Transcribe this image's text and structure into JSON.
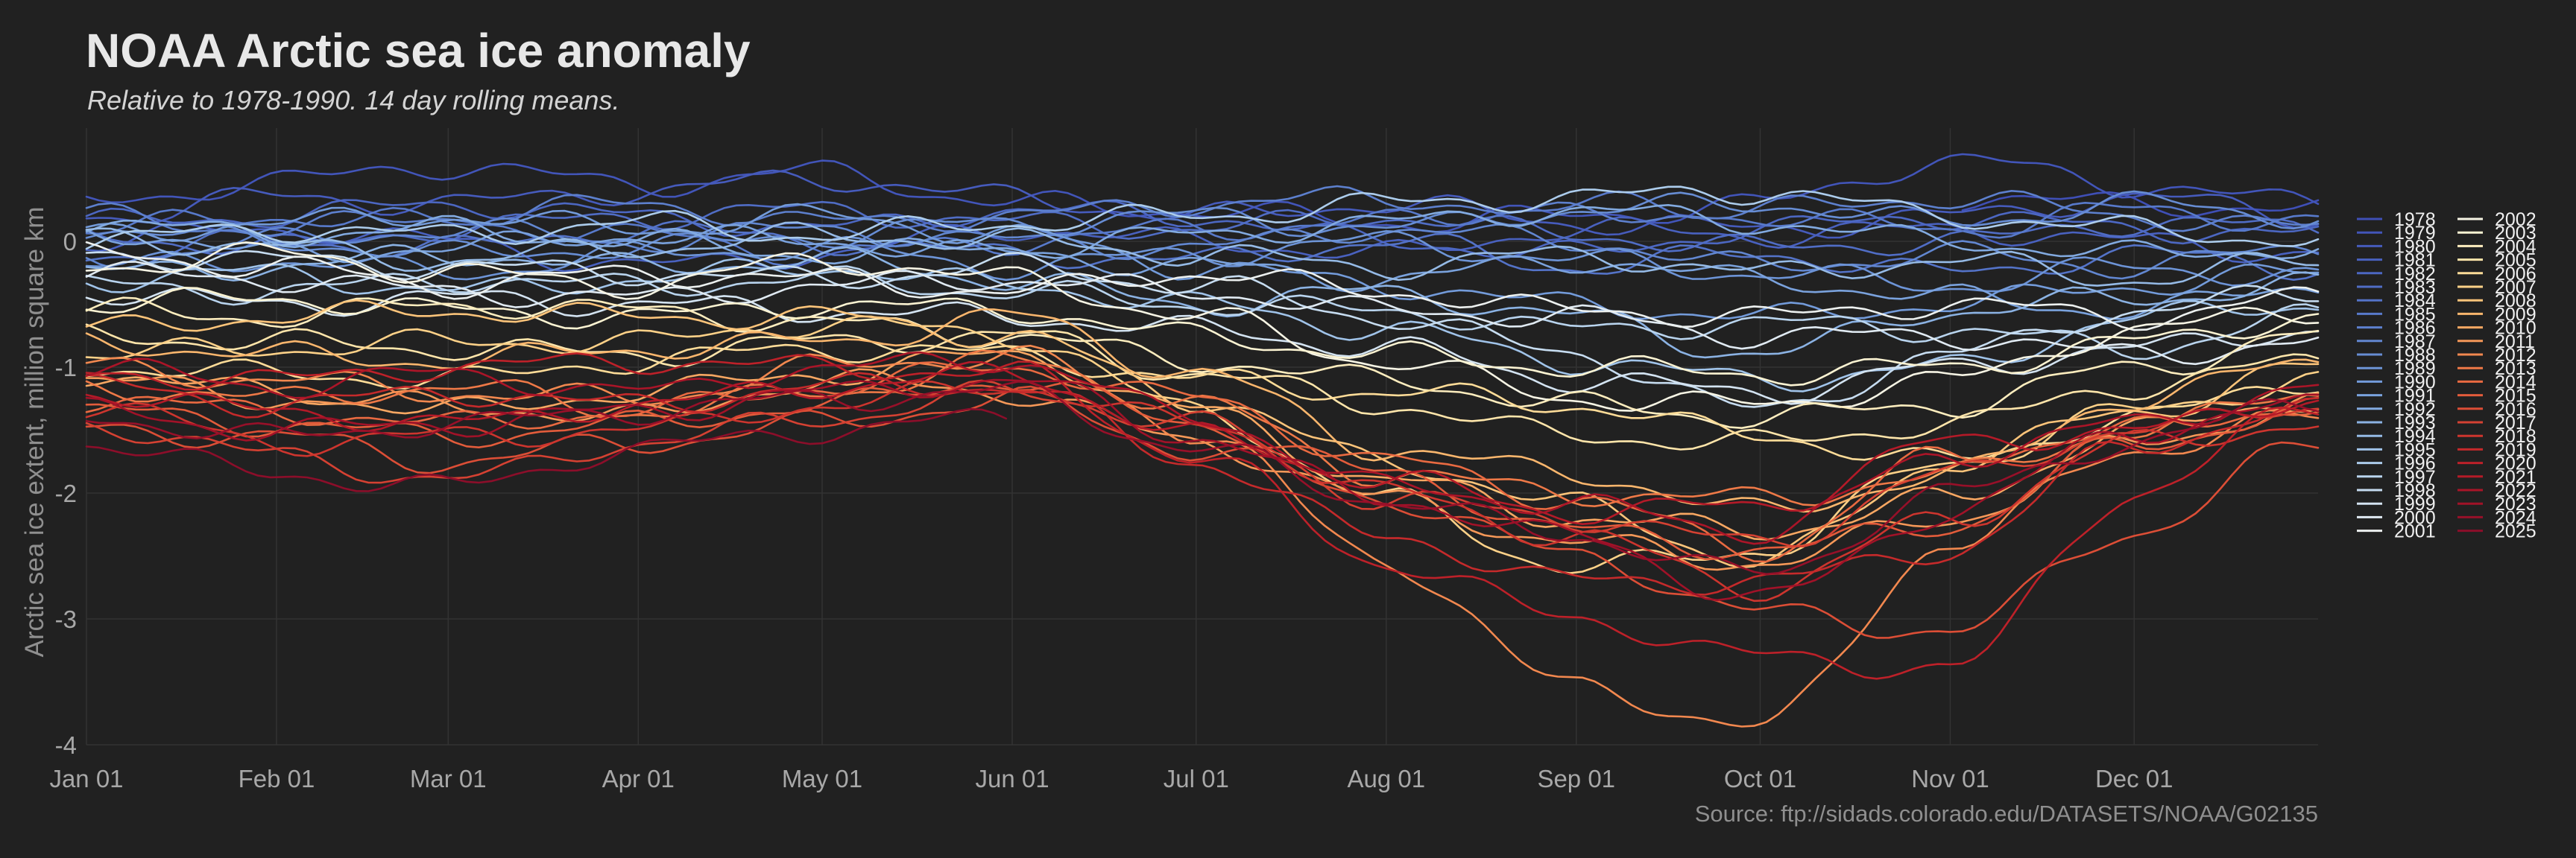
{
  "chart_data": {
    "type": "line",
    "title": "NOAA Arctic sea ice anomaly",
    "subtitle": "Relative to 1978-1990. 14 day rolling means.",
    "xlabel": "",
    "ylabel": "Arctic sea ice extent, million square km",
    "source": "Source: ftp://sidads.colorado.edu/DATASETS/NOAA/G02135",
    "xlim": [
      1,
      365
    ],
    "ylim": [
      -4,
      0.9
    ],
    "grid": true,
    "legend_position": "right",
    "x_ticks": [
      {
        "day": 1,
        "label": "Jan 01"
      },
      {
        "day": 32,
        "label": "Feb 01"
      },
      {
        "day": 60,
        "label": "Mar 01"
      },
      {
        "day": 91,
        "label": "Apr 01"
      },
      {
        "day": 121,
        "label": "May 01"
      },
      {
        "day": 152,
        "label": "Jun 01"
      },
      {
        "day": 182,
        "label": "Jul 01"
      },
      {
        "day": 213,
        "label": "Aug 01"
      },
      {
        "day": 244,
        "label": "Sep 01"
      },
      {
        "day": 274,
        "label": "Oct 01"
      },
      {
        "day": 305,
        "label": "Nov 01"
      },
      {
        "day": 335,
        "label": "Dec 01"
      }
    ],
    "y_ticks": [
      {
        "value": 0,
        "label": "0"
      },
      {
        "value": -1,
        "label": "-1"
      },
      {
        "value": -2,
        "label": "-2"
      },
      {
        "value": -3,
        "label": "-3"
      },
      {
        "value": -4,
        "label": "-4"
      }
    ],
    "x_days": [
      1,
      32,
      60,
      91,
      121,
      152,
      182,
      213,
      244,
      274,
      305,
      335,
      365
    ],
    "series": [
      {
        "name": "1978",
        "color": "#3f4fb6",
        "values": [
          null,
          null,
          null,
          null,
          null,
          null,
          null,
          null,
          null,
          null,
          0.35,
          0.3,
          0.25
        ]
      },
      {
        "name": "1979",
        "color": "#4255b9",
        "values": [
          0.3,
          0.48,
          0.6,
          0.45,
          0.55,
          0.3,
          0.25,
          0.15,
          0.2,
          0.3,
          0.65,
          0.45,
          0.3
        ]
      },
      {
        "name": "1980",
        "color": "#465bbc",
        "values": [
          0.2,
          0.35,
          0.3,
          0.4,
          0.5,
          0.35,
          0.2,
          0.3,
          0.15,
          0.1,
          0.2,
          0.35,
          0.2
        ]
      },
      {
        "name": "1981",
        "color": "#4961bf",
        "values": [
          0.0,
          0.1,
          0.0,
          -0.2,
          -0.1,
          0.1,
          0.0,
          -0.1,
          0.1,
          0.05,
          0.1,
          0.0,
          -0.1
        ]
      },
      {
        "name": "1982",
        "color": "#4c67c2",
        "values": [
          0.15,
          0.2,
          0.3,
          0.2,
          0.1,
          0.25,
          0.2,
          0.0,
          -0.1,
          0.1,
          0.2,
          0.1,
          0.05
        ]
      },
      {
        "name": "1983",
        "color": "#506dc5",
        "values": [
          0.05,
          -0.05,
          0.1,
          0.2,
          0.25,
          0.15,
          0.1,
          0.2,
          0.05,
          -0.05,
          0.0,
          0.15,
          0.1
        ]
      },
      {
        "name": "1984",
        "color": "#5473c8",
        "values": [
          -0.1,
          0.0,
          -0.05,
          0.1,
          0.0,
          -0.1,
          -0.15,
          0.0,
          -0.2,
          -0.1,
          -0.25,
          -0.1,
          -0.2
        ]
      },
      {
        "name": "1985",
        "color": "#587acb",
        "values": [
          0.1,
          0.2,
          0.15,
          0.05,
          -0.1,
          0.0,
          0.1,
          0.15,
          0.3,
          0.2,
          0.1,
          0.25,
          0.15
        ]
      },
      {
        "name": "1986",
        "color": "#5d80ce",
        "values": [
          0.2,
          0.1,
          0.2,
          0.3,
          0.15,
          0.2,
          0.3,
          0.35,
          0.2,
          0.25,
          0.35,
          0.2,
          0.1
        ]
      },
      {
        "name": "1987",
        "color": "#6287d1",
        "values": [
          -0.15,
          0.0,
          0.1,
          0.0,
          0.1,
          0.0,
          -0.05,
          0.1,
          0.0,
          -0.2,
          -0.1,
          -0.2,
          -0.05
        ]
      },
      {
        "name": "1988",
        "color": "#678dd4",
        "values": [
          0.1,
          0.0,
          -0.1,
          -0.05,
          0.05,
          0.15,
          0.2,
          0.1,
          0.25,
          0.3,
          0.15,
          0.3,
          0.2
        ]
      },
      {
        "name": "1989",
        "color": "#6d94d7",
        "values": [
          -0.2,
          -0.15,
          -0.25,
          -0.1,
          -0.05,
          -0.2,
          -0.1,
          0.0,
          -0.15,
          -0.25,
          -0.35,
          -0.2,
          -0.3
        ]
      },
      {
        "name": "1990",
        "color": "#739bda",
        "values": [
          0.05,
          0.15,
          0.2,
          0.1,
          0.2,
          0.05,
          -0.2,
          -0.35,
          -0.5,
          -0.6,
          -0.5,
          -0.35,
          -0.25
        ]
      },
      {
        "name": "1991",
        "color": "#7aa2dd",
        "values": [
          0.1,
          -0.1,
          -0.05,
          0.05,
          0.0,
          -0.1,
          -0.2,
          -0.3,
          -0.15,
          -0.3,
          -0.45,
          -0.55,
          -0.35
        ]
      },
      {
        "name": "1992",
        "color": "#82aae0",
        "values": [
          0.15,
          0.05,
          0.1,
          0.0,
          -0.1,
          -0.05,
          0.05,
          0.15,
          0.25,
          0.15,
          0.0,
          -0.1,
          -0.05
        ]
      },
      {
        "name": "1993",
        "color": "#8bb2e3",
        "values": [
          -0.25,
          -0.2,
          -0.1,
          -0.2,
          -0.15,
          -0.3,
          -0.5,
          -0.4,
          -0.6,
          -0.9,
          -0.55,
          -0.45,
          -0.35
        ]
      },
      {
        "name": "1994",
        "color": "#95bae6",
        "values": [
          0.05,
          -0.05,
          -0.15,
          -0.05,
          0.05,
          0.0,
          -0.1,
          -0.2,
          -0.1,
          -0.25,
          -0.15,
          -0.3,
          -0.15
        ]
      },
      {
        "name": "1995",
        "color": "#a0c3e9",
        "values": [
          -0.3,
          -0.25,
          -0.4,
          -0.3,
          -0.2,
          -0.35,
          -0.5,
          -0.7,
          -0.95,
          -1.1,
          -1.0,
          -0.6,
          -0.5
        ]
      },
      {
        "name": "1996",
        "color": "#acccec",
        "values": [
          0.0,
          0.1,
          0.05,
          0.15,
          0.05,
          0.15,
          0.2,
          0.3,
          0.35,
          0.4,
          0.2,
          0.1,
          0.0
        ]
      },
      {
        "name": "1997",
        "color": "#b9d4ee",
        "values": [
          -0.35,
          -0.4,
          -0.3,
          -0.35,
          -0.3,
          -0.4,
          -0.5,
          -0.55,
          -0.7,
          -0.65,
          -0.7,
          -0.85,
          -0.6
        ]
      },
      {
        "name": "1998",
        "color": "#c6dcf0",
        "values": [
          -0.1,
          -0.15,
          -0.2,
          -0.25,
          -0.3,
          -0.2,
          -0.35,
          -0.6,
          -0.9,
          -1.35,
          -0.9,
          -0.55,
          -0.4
        ]
      },
      {
        "name": "1999",
        "color": "#d3e3f1",
        "values": [
          -0.4,
          -0.5,
          -0.45,
          -0.5,
          -0.55,
          -0.6,
          -0.7,
          -0.85,
          -1.1,
          -1.2,
          -1.0,
          -0.85,
          -0.7
        ]
      },
      {
        "name": "2000",
        "color": "#e0eaf2",
        "values": [
          -0.25,
          -0.3,
          -0.4,
          -0.45,
          -0.35,
          -0.3,
          -0.4,
          -0.55,
          -0.6,
          -0.75,
          -0.75,
          -0.9,
          -0.8
        ]
      },
      {
        "name": "2001",
        "color": "#ecf0ef",
        "values": [
          -0.1,
          -0.2,
          -0.35,
          -0.25,
          -0.3,
          -0.4,
          -0.25,
          -0.4,
          -0.55,
          -0.6,
          -0.5,
          -0.6,
          -0.45
        ]
      },
      {
        "name": "2002",
        "color": "#f6f4e4",
        "values": [
          -0.2,
          -0.1,
          -0.25,
          -0.35,
          -0.15,
          -0.3,
          -0.6,
          -0.95,
          -1.25,
          -1.3,
          -1.1,
          -0.7,
          -0.55
        ]
      },
      {
        "name": "2003",
        "color": "#fbf3d2",
        "values": [
          -0.5,
          -0.45,
          -0.55,
          -0.6,
          -0.5,
          -0.55,
          -0.75,
          -0.9,
          -1.0,
          -1.05,
          -1.0,
          -0.8,
          -0.6
        ]
      },
      {
        "name": "2004",
        "color": "#fdedbe",
        "values": [
          -0.55,
          -0.6,
          -0.5,
          -0.55,
          -0.65,
          -0.75,
          -0.95,
          -1.1,
          -1.3,
          -1.4,
          -1.3,
          -1.0,
          -0.75
        ]
      },
      {
        "name": "2005",
        "color": "#fee5aa",
        "values": [
          -0.75,
          -0.8,
          -0.85,
          -0.9,
          -0.8,
          -0.75,
          -1.05,
          -1.3,
          -1.55,
          -1.6,
          -1.45,
          -1.15,
          -0.95
        ]
      },
      {
        "name": "2006",
        "color": "#fedc98",
        "values": [
          -1.0,
          -1.05,
          -1.1,
          -0.95,
          -0.85,
          -0.9,
          -1.1,
          -1.2,
          -1.3,
          -1.55,
          -1.75,
          -1.4,
          -1.1
        ]
      },
      {
        "name": "2007",
        "color": "#fdd188",
        "values": [
          -0.9,
          -0.85,
          -0.8,
          -0.8,
          -0.65,
          -0.75,
          -1.35,
          -2.05,
          -2.6,
          -2.45,
          -1.75,
          -1.35,
          -1.1
        ]
      },
      {
        "name": "2008",
        "color": "#fcc47a",
        "values": [
          -0.7,
          -0.6,
          -0.55,
          -0.6,
          -0.6,
          -0.75,
          -1.25,
          -1.75,
          -2.1,
          -2.55,
          -1.75,
          -1.35,
          -1.0
        ]
      },
      {
        "name": "2009",
        "color": "#fab66d",
        "values": [
          -0.8,
          -0.9,
          -0.95,
          -0.85,
          -0.8,
          -0.6,
          -1.05,
          -1.65,
          -1.85,
          -2.15,
          -1.85,
          -1.25,
          -0.95
        ]
      },
      {
        "name": "2010",
        "color": "#f8a762",
        "values": [
          -1.05,
          -1.2,
          -1.35,
          -1.2,
          -1.05,
          -0.9,
          -1.35,
          -1.9,
          -2.2,
          -2.3,
          -2.05,
          -1.5,
          -1.25
        ]
      },
      {
        "name": "2011",
        "color": "#f59858",
        "values": [
          -1.1,
          -1.25,
          -1.3,
          -1.4,
          -1.1,
          -1.2,
          -1.6,
          -2.05,
          -2.4,
          -2.55,
          -2.2,
          -1.6,
          -1.3
        ]
      },
      {
        "name": "2012",
        "color": "#f2884f",
        "values": [
          -1.0,
          -1.1,
          -1.2,
          -1.25,
          -1.0,
          -0.9,
          -1.5,
          -2.55,
          -3.55,
          -3.85,
          -2.4,
          -1.65,
          -1.4
        ]
      },
      {
        "name": "2013",
        "color": "#ee7947",
        "values": [
          -1.15,
          -1.25,
          -1.15,
          -1.35,
          -1.2,
          -0.95,
          -1.3,
          -1.85,
          -2.0,
          -2.05,
          -1.85,
          -1.5,
          -1.2
        ]
      },
      {
        "name": "2014",
        "color": "#e96a41",
        "values": [
          -1.25,
          -1.35,
          -1.45,
          -1.35,
          -1.15,
          -1.0,
          -1.25,
          -1.75,
          -2.05,
          -2.45,
          -1.7,
          -1.5,
          -1.3
        ]
      },
      {
        "name": "2015",
        "color": "#e35c3b",
        "values": [
          -1.35,
          -1.45,
          -1.55,
          -1.45,
          -1.3,
          -1.1,
          -1.45,
          -1.85,
          -2.3,
          -2.45,
          -2.25,
          -1.6,
          -1.35
        ]
      },
      {
        "name": "2016",
        "color": "#dc4e36",
        "values": [
          -1.5,
          -1.55,
          -1.75,
          -1.6,
          -1.45,
          -1.25,
          -1.65,
          -2.05,
          -2.5,
          -2.95,
          -3.1,
          -2.3,
          -1.6
        ]
      },
      {
        "name": "2017",
        "color": "#d54132",
        "values": [
          -1.45,
          -1.7,
          -1.9,
          -1.6,
          -1.4,
          -1.2,
          -1.45,
          -2.05,
          -2.2,
          -2.4,
          -1.85,
          -1.5,
          -1.3
        ]
      },
      {
        "name": "2018",
        "color": "#cd352e",
        "values": [
          -1.3,
          -1.6,
          -1.55,
          -1.5,
          -1.3,
          -1.15,
          -1.45,
          -2.0,
          -2.35,
          -2.75,
          -2.2,
          -1.6,
          -1.45
        ]
      },
      {
        "name": "2019",
        "color": "#c52a2b",
        "values": [
          -1.15,
          -1.3,
          -1.2,
          -1.3,
          -1.15,
          -1.15,
          -1.75,
          -2.35,
          -2.7,
          -2.7,
          -2.45,
          -1.6,
          -1.35
        ]
      },
      {
        "name": "2020",
        "color": "#bd2129",
        "values": [
          -1.05,
          -1.1,
          -1.0,
          -0.95,
          -1.0,
          -1.05,
          -1.7,
          -2.55,
          -3.0,
          -3.3,
          -3.4,
          -2.0,
          -1.3
        ]
      },
      {
        "name": "2021",
        "color": "#b41a28",
        "values": [
          -1.2,
          -1.35,
          -1.45,
          -1.3,
          -1.15,
          -1.05,
          -1.55,
          -1.9,
          -2.15,
          -2.1,
          -1.6,
          -1.5,
          -1.25
        ]
      },
      {
        "name": "2022",
        "color": "#ab1528",
        "values": [
          -1.0,
          -1.15,
          -1.05,
          -1.2,
          -1.0,
          -0.95,
          -1.4,
          -1.95,
          -2.1,
          -2.3,
          -1.7,
          -1.45,
          -1.15
        ]
      },
      {
        "name": "2023",
        "color": "#a11228",
        "values": [
          -1.35,
          -1.5,
          -1.45,
          -1.35,
          -1.2,
          -1.1,
          -1.55,
          -2.05,
          -2.35,
          -2.85,
          -2.15,
          -1.5,
          -1.3
        ]
      },
      {
        "name": "2024",
        "color": "#971029",
        "values": [
          -1.4,
          -1.55,
          -1.45,
          -1.35,
          -1.25,
          -1.2,
          -1.65,
          -2.05,
          -2.35,
          -2.65,
          -2.0,
          -1.6,
          -1.25
        ]
      },
      {
        "name": "2025",
        "color": "#8c0e2a",
        "values": [
          -1.6,
          -1.85,
          -1.95,
          -1.65,
          -1.5,
          -1.4,
          null,
          null,
          null,
          null,
          null,
          null,
          null
        ]
      }
    ]
  }
}
